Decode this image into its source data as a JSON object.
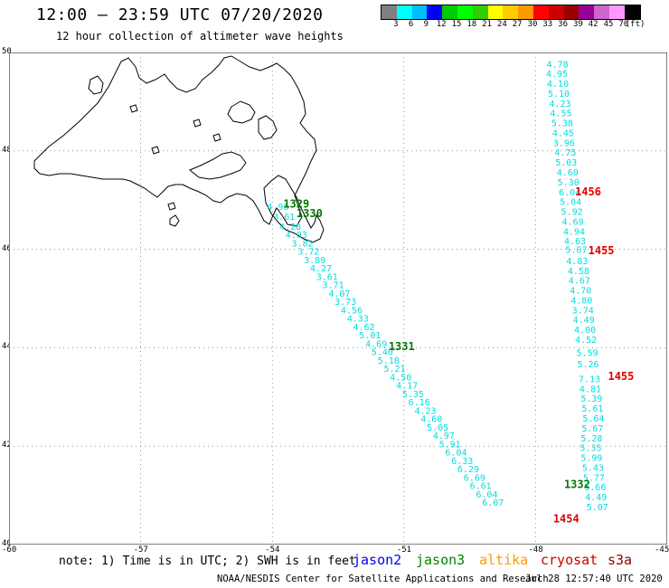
{
  "title": "12:00 – 23:59 UTC 07/20/2020",
  "subtitle": "12 hour collection of altimeter wave heights",
  "legend": {
    "colors": [
      "#808080",
      "#00ffff",
      "#00bfff",
      "#0000ff",
      "#00cc00",
      "#00ff00",
      "#33cc00",
      "#ffff00",
      "#ffcc00",
      "#ff9900",
      "#ff0000",
      "#cc0000",
      "#990000",
      "#990099",
      "#cc66cc",
      "#ff99ff",
      "#000000"
    ],
    "labels": [
      "3",
      "6",
      "9",
      "12",
      "15",
      "18",
      "21",
      "24",
      "27",
      "30",
      "33",
      "36",
      "39",
      "42",
      "45",
      "70",
      "(ft)"
    ]
  },
  "axes": {
    "lat_labels": [
      "50",
      "48",
      "46",
      "44",
      "42",
      "40"
    ],
    "lon_labels": [
      "-60",
      "-57",
      "-54",
      "-51",
      "-48",
      "-45"
    ]
  },
  "tracks": {
    "cyan_color": "#00dddd",
    "track1": [
      {
        "lat": 49.7,
        "lon": -47.75,
        "v": "4.78"
      },
      {
        "lat": 49.5,
        "lon": -47.76,
        "v": "4.95"
      },
      {
        "lat": 49.3,
        "lon": -47.74,
        "v": "4.10"
      },
      {
        "lat": 49.1,
        "lon": -47.72,
        "v": "5.10"
      },
      {
        "lat": 48.9,
        "lon": -47.69,
        "v": "4.23"
      },
      {
        "lat": 48.7,
        "lon": -47.67,
        "v": "4.55"
      },
      {
        "lat": 48.5,
        "lon": -47.64,
        "v": "5.38"
      },
      {
        "lat": 48.3,
        "lon": -47.62,
        "v": "4.45"
      },
      {
        "lat": 48.1,
        "lon": -47.6,
        "v": "3.96"
      },
      {
        "lat": 47.9,
        "lon": -47.57,
        "v": "4.75"
      },
      {
        "lat": 47.7,
        "lon": -47.55,
        "v": "5.03"
      },
      {
        "lat": 47.5,
        "lon": -47.52,
        "v": "4.60"
      },
      {
        "lat": 47.3,
        "lon": -47.5,
        "v": "5.30"
      },
      {
        "lat": 47.1,
        "lon": -47.47,
        "v": "6.04"
      },
      {
        "lat": 46.9,
        "lon": -47.45,
        "v": "5.04"
      },
      {
        "lat": 46.7,
        "lon": -47.42,
        "v": "5.92"
      },
      {
        "lat": 46.5,
        "lon": -47.4,
        "v": "4.69"
      },
      {
        "lat": 46.3,
        "lon": -47.37,
        "v": "4.94"
      },
      {
        "lat": 46.1,
        "lon": -47.35,
        "v": "4.63"
      },
      {
        "lat": 45.93,
        "lon": -47.32,
        "v": "5.07"
      },
      {
        "lat": 45.7,
        "lon": -47.3,
        "v": "4.83"
      },
      {
        "lat": 45.5,
        "lon": -47.27,
        "v": "4.58"
      },
      {
        "lat": 45.3,
        "lon": -47.25,
        "v": "4.67"
      },
      {
        "lat": 45.1,
        "lon": -47.22,
        "v": "4.70"
      },
      {
        "lat": 44.9,
        "lon": -47.2,
        "v": "4.80"
      },
      {
        "lat": 44.7,
        "lon": -47.17,
        "v": "3.74"
      },
      {
        "lat": 44.5,
        "lon": -47.15,
        "v": "4.49"
      },
      {
        "lat": 44.3,
        "lon": -47.12,
        "v": "4.00"
      },
      {
        "lat": 44.1,
        "lon": -47.1,
        "v": "4.52"
      },
      {
        "lat": 43.83,
        "lon": -47.07,
        "v": "5.59"
      },
      {
        "lat": 43.6,
        "lon": -47.05,
        "v": "5.26"
      },
      {
        "lat": 43.3,
        "lon": -47.02,
        "v": "7.13"
      },
      {
        "lat": 43.1,
        "lon": -47.0,
        "v": "4.81"
      },
      {
        "lat": 42.9,
        "lon": -46.97,
        "v": "5.39"
      },
      {
        "lat": 42.7,
        "lon": -46.95,
        "v": "5.61"
      },
      {
        "lat": 42.5,
        "lon": -46.93,
        "v": "5.64"
      },
      {
        "lat": 42.3,
        "lon": -46.95,
        "v": "5.67"
      },
      {
        "lat": 42.1,
        "lon": -46.97,
        "v": "5.28"
      },
      {
        "lat": 41.9,
        "lon": -46.99,
        "v": "5.35"
      },
      {
        "lat": 41.7,
        "lon": -46.97,
        "v": "5.99"
      },
      {
        "lat": 41.5,
        "lon": -46.94,
        "v": "5.43"
      },
      {
        "lat": 41.3,
        "lon": -46.92,
        "v": "5.77"
      },
      {
        "lat": 41.1,
        "lon": -46.89,
        "v": "5.66"
      },
      {
        "lat": 40.9,
        "lon": -46.87,
        "v": "4.49"
      },
      {
        "lat": 40.7,
        "lon": -46.84,
        "v": "5.07"
      }
    ],
    "track2": [
      {
        "lat": 46.8,
        "lon": -54.12,
        "v": "4.98"
      },
      {
        "lat": 46.6,
        "lon": -53.98,
        "v": "3.61"
      },
      {
        "lat": 46.4,
        "lon": -53.84,
        "v": "4.28"
      },
      {
        "lat": 46.23,
        "lon": -53.7,
        "v": "4.03"
      },
      {
        "lat": 46.06,
        "lon": -53.56,
        "v": "3.82"
      },
      {
        "lat": 45.89,
        "lon": -53.42,
        "v": "3.72"
      },
      {
        "lat": 45.72,
        "lon": -53.28,
        "v": "3.89"
      },
      {
        "lat": 45.55,
        "lon": -53.14,
        "v": "4.27"
      },
      {
        "lat": 45.38,
        "lon": -53.0,
        "v": "3.61"
      },
      {
        "lat": 45.21,
        "lon": -52.86,
        "v": "3.71"
      },
      {
        "lat": 45.04,
        "lon": -52.72,
        "v": "4.07"
      },
      {
        "lat": 44.87,
        "lon": -52.58,
        "v": "3.73"
      },
      {
        "lat": 44.7,
        "lon": -52.44,
        "v": "4.56"
      },
      {
        "lat": 44.53,
        "lon": -52.3,
        "v": "4.33"
      },
      {
        "lat": 44.36,
        "lon": -52.16,
        "v": "4.62"
      },
      {
        "lat": 44.19,
        "lon": -52.02,
        "v": "5.01"
      },
      {
        "lat": 44.02,
        "lon": -51.88,
        "v": "4.69"
      },
      {
        "lat": 43.85,
        "lon": -51.74,
        "v": "5.40"
      },
      {
        "lat": 43.68,
        "lon": -51.6,
        "v": "5.18"
      },
      {
        "lat": 43.51,
        "lon": -51.46,
        "v": "5.21"
      },
      {
        "lat": 43.34,
        "lon": -51.32,
        "v": "4.50"
      },
      {
        "lat": 43.17,
        "lon": -51.18,
        "v": "4.17"
      },
      {
        "lat": 43.0,
        "lon": -51.04,
        "v": "5.35"
      },
      {
        "lat": 42.83,
        "lon": -50.9,
        "v": "6.16"
      },
      {
        "lat": 42.66,
        "lon": -50.76,
        "v": "4.23"
      },
      {
        "lat": 42.49,
        "lon": -50.62,
        "v": "4.60"
      },
      {
        "lat": 42.32,
        "lon": -50.48,
        "v": "5.05"
      },
      {
        "lat": 42.15,
        "lon": -50.34,
        "v": "4.97"
      },
      {
        "lat": 41.98,
        "lon": -50.2,
        "v": "5.91"
      },
      {
        "lat": 41.81,
        "lon": -50.06,
        "v": "6.04"
      },
      {
        "lat": 41.64,
        "lon": -49.92,
        "v": "6.33"
      },
      {
        "lat": 41.47,
        "lon": -49.78,
        "v": "6.29"
      },
      {
        "lat": 41.3,
        "lon": -49.64,
        "v": "6.69"
      },
      {
        "lat": 41.13,
        "lon": -49.5,
        "v": "6.61"
      },
      {
        "lat": 40.96,
        "lon": -49.36,
        "v": "6.04"
      },
      {
        "lat": 40.79,
        "lon": -49.22,
        "v": "6.07"
      }
    ],
    "labels": [
      {
        "text": "1329",
        "lat": 46.85,
        "lon": -53.75,
        "color": "#007700"
      },
      {
        "text": "1330",
        "lat": 46.65,
        "lon": -53.45,
        "color": "#007700"
      },
      {
        "text": "1331",
        "lat": 43.95,
        "lon": -51.35,
        "color": "#007700"
      },
      {
        "text": "1332",
        "lat": 41.15,
        "lon": -47.35,
        "color": "#007700"
      },
      {
        "text": "1456",
        "lat": 47.1,
        "lon": -47.1,
        "color": "#dd0000"
      },
      {
        "text": "1455",
        "lat": 45.9,
        "lon": -46.8,
        "color": "#dd0000"
      },
      {
        "text": "1455",
        "lat": 43.35,
        "lon": -46.35,
        "color": "#dd0000"
      },
      {
        "text": "1454",
        "lat": 40.45,
        "lon": -47.6,
        "color": "#dd0000"
      }
    ]
  },
  "note": "note: 1) Time is in UTC; 2) SWH is in feet",
  "satellites": [
    {
      "name": "jason2",
      "color": "#0000ee"
    },
    {
      "name": "jason3",
      "color": "#008800"
    },
    {
      "name": "altika",
      "color": "#ff9900"
    },
    {
      "name": "cryosat",
      "color": "#cc0000"
    },
    {
      "name": "s3a",
      "color": "#880000"
    }
  ],
  "credit": "NOAA/NESDIS Center for Satellite Applications and Research",
  "credit_time": "Jul 28 12:57:40 UTC 2020"
}
